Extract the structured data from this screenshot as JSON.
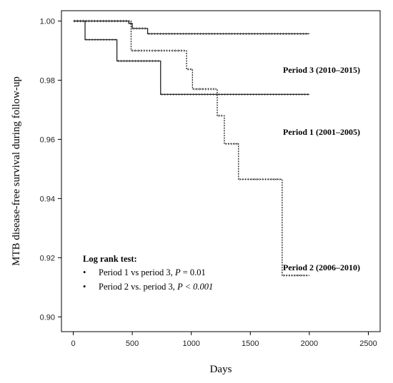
{
  "chart_data": {
    "type": "line",
    "title": "",
    "xlabel": "Days",
    "ylabel": "MTB disease-free survival during follow-up",
    "xlim": [
      -100,
      2600
    ],
    "ylim": [
      0.895,
      1.0035
    ],
    "xticks": [
      0,
      500,
      1000,
      1500,
      2000,
      2500
    ],
    "xtick_labels": [
      "0",
      "500",
      "1000",
      "1500",
      "2000",
      "2500"
    ],
    "yticks": [
      0.9,
      0.92,
      0.94,
      0.96,
      0.98,
      1.0
    ],
    "ytick_labels": [
      "0.90",
      "0.92",
      "0.94",
      "0.96",
      "0.98",
      "1.00"
    ],
    "grid": false,
    "series": [
      {
        "name": "Period 3 (2010–2015)",
        "style": "solid",
        "x": [
          0,
          470,
          500,
          630,
          2000
        ],
        "y": [
          1.0,
          0.9992,
          0.9975,
          0.9957,
          0.9957
        ]
      },
      {
        "name": "Period 1 (2001–2005)",
        "style": "solid",
        "x": [
          0,
          100,
          370,
          740,
          2000
        ],
        "y": [
          1.0,
          0.9937,
          0.9865,
          0.9752,
          0.9752
        ]
      },
      {
        "name": "Period 2 (2006–2010)",
        "style": "dotted",
        "x": [
          0,
          220,
          490,
          960,
          1010,
          1220,
          1280,
          1400,
          1770,
          2000
        ],
        "y": [
          1.0,
          1.0,
          0.99,
          0.9837,
          0.977,
          0.968,
          0.9585,
          0.9465,
          0.914,
          0.914
        ]
      }
    ]
  },
  "series_labels": {
    "period3": "Period 3 (2010–2015)",
    "period1": "Period 1 (2001–2005)",
    "period2": "Period 2 (2006–2010)"
  },
  "stats_box": {
    "title": "Log rank test:",
    "line1_prefix": "Period 1 vs period 3, ",
    "line1_p": "P",
    "line1_value": " = 0.01",
    "line2_prefix": "Period 2 vs. period 3, ",
    "line2_p": "P",
    "line2_value": " < 0.001",
    "bullet": "•"
  }
}
